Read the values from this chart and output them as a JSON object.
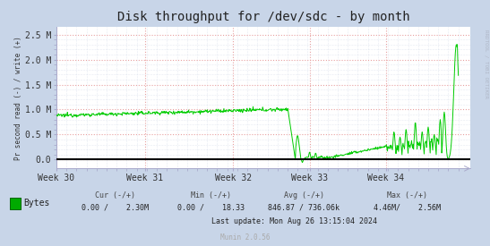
{
  "title": "Disk throughput for /dev/sdc - by month",
  "ylabel": "Pr second read (-) / write (+)",
  "ytick_labels": [
    "0.0",
    "0.5 M",
    "1.0 M",
    "1.5 M",
    "2.0 M",
    "2.5 M"
  ],
  "ytick_vals": [
    0.0,
    0.5,
    1.0,
    1.5,
    2.0,
    2.5
  ],
  "ylim": [
    -0.18,
    2.65
  ],
  "xtick_labels": [
    "Week 30",
    "Week 31",
    "Week 32",
    "Week 33",
    "Week 34"
  ],
  "bg_color": "#c8d5e8",
  "plot_bg_color": "#ffffff",
  "major_grid_color": "#e8a0a0",
  "minor_grid_color": "#d0d8e8",
  "line_color": "#00cc00",
  "zero_line_color": "#000000",
  "title_color": "#222222",
  "legend_label": "Bytes",
  "legend_color": "#00aa00",
  "stat_label_color": "#444444",
  "stat_val_color": "#222222",
  "cur_label": "Cur (-/+)",
  "min_label": "Min (-/+)",
  "avg_label": "Avg (-/+)",
  "max_label": "Max (-/+)",
  "cur_val": "0.00 /    2.30M",
  "min_val": "0.00 /    18.33",
  "avg_val": "846.87 / 736.06k",
  "max_val": "4.46M/    2.56M",
  "last_update": "Last update: Mon Aug 26 13:15:04 2024",
  "munin_version": "Munin 2.0.56",
  "rrdtool_label": "RRDTOOL / TOBI OETIKER",
  "spine_color": "#aaaacc",
  "title_fontsize": 10,
  "axis_fontsize": 7,
  "legend_fontsize": 7,
  "n_points": 800
}
